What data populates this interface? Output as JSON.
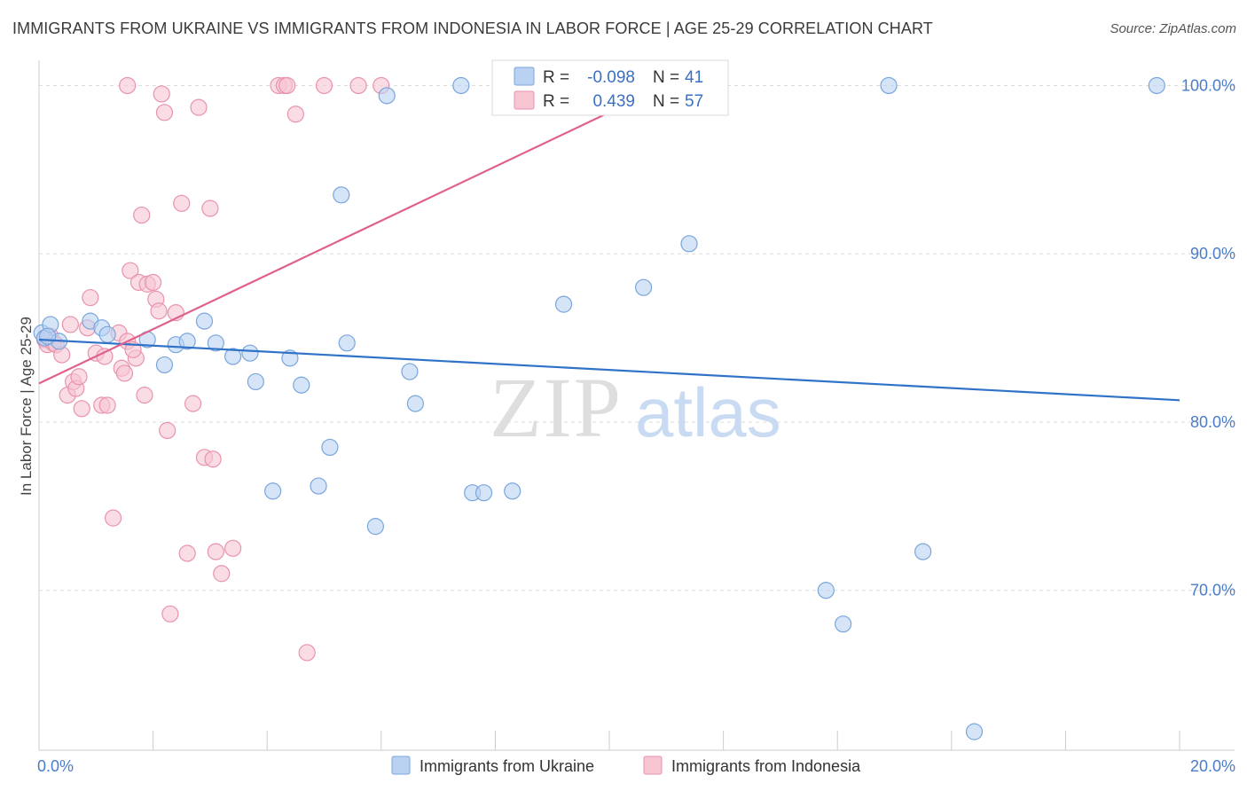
{
  "title": "IMMIGRANTS FROM UKRAINE VS IMMIGRANTS FROM INDONESIA IN LABOR FORCE | AGE 25-29 CORRELATION CHART",
  "source": "Source: ZipAtlas.com",
  "colors": {
    "ukraine_fill": "#b9d2f2",
    "ukraine_stroke": "#7aa6dc",
    "ukraine_line": "#2f72c8",
    "indonesia_fill": "#f7c4d2",
    "indonesia_stroke": "#e993ad",
    "indonesia_line": "#e0608d",
    "grid": "#dddddd",
    "tick": "#4a7cc9"
  },
  "watermark": {
    "zip": "ZIP",
    "atlas": "atlas"
  },
  "stats": {
    "r_label": "R =",
    "n_label": "N =",
    "ukraine": {
      "r": "-0.098",
      "n": "41"
    },
    "indonesia": {
      "r": "0.439",
      "n": "57"
    }
  },
  "chart_data": {
    "type": "scatter",
    "title": "IMMIGRANTS FROM UKRAINE VS IMMIGRANTS FROM INDONESIA IN LABOR FORCE | AGE 25-29 CORRELATION CHART",
    "xlabel": "",
    "ylabel": "In Labor Force | Age 25-29",
    "xlim": [
      0,
      20
    ],
    "ylim": [
      60.5,
      101.5
    ],
    "x_tick_labels": [
      {
        "value": 0,
        "label": "0.0%"
      },
      {
        "value": 20,
        "label": "20.0%"
      }
    ],
    "y_tick_labels": [
      {
        "value": 100,
        "label": "100.0%"
      },
      {
        "value": 90,
        "label": "90.0%"
      },
      {
        "value": 80,
        "label": "80.0%"
      },
      {
        "value": 70,
        "label": "70.0%"
      }
    ],
    "legend": [
      "Immigrants from Ukraine",
      "Immigrants from Indonesia"
    ],
    "series": [
      {
        "name": "Immigrants from Ukraine",
        "points": [
          [
            0.05,
            85.3
          ],
          [
            0.1,
            85.0
          ],
          [
            0.2,
            85.8
          ],
          [
            0.35,
            84.8
          ],
          [
            0.9,
            86.0
          ],
          [
            1.1,
            85.6
          ],
          [
            1.2,
            85.2
          ],
          [
            1.9,
            84.9
          ],
          [
            2.2,
            83.4
          ],
          [
            2.4,
            84.6
          ],
          [
            2.6,
            84.8
          ],
          [
            2.9,
            86.0
          ],
          [
            3.1,
            84.7
          ],
          [
            3.4,
            83.9
          ],
          [
            3.7,
            84.1
          ],
          [
            3.8,
            82.4
          ],
          [
            4.1,
            75.9
          ],
          [
            4.4,
            83.8
          ],
          [
            4.6,
            82.2
          ],
          [
            4.9,
            76.2
          ],
          [
            5.1,
            78.5
          ],
          [
            5.3,
            93.5
          ],
          [
            5.4,
            84.7
          ],
          [
            5.9,
            73.8
          ],
          [
            6.1,
            99.4
          ],
          [
            6.5,
            83.0
          ],
          [
            6.6,
            81.1
          ],
          [
            7.4,
            100.0
          ],
          [
            7.6,
            75.8
          ],
          [
            7.8,
            75.8
          ],
          [
            8.3,
            75.9
          ],
          [
            9.2,
            87.0
          ],
          [
            10.6,
            88.0
          ],
          [
            11.4,
            90.6
          ],
          [
            13.8,
            70.0
          ],
          [
            14.1,
            68.0
          ],
          [
            14.9,
            100.0
          ],
          [
            15.5,
            72.3
          ],
          [
            16.4,
            61.6
          ],
          [
            19.6,
            100.0
          ],
          [
            0.15,
            85.1
          ]
        ],
        "trend": [
          [
            0,
            84.9
          ],
          [
            20,
            81.3
          ]
        ]
      },
      {
        "name": "Immigrants from Indonesia",
        "points": [
          [
            0.1,
            84.9
          ],
          [
            0.15,
            84.6
          ],
          [
            0.2,
            85.1
          ],
          [
            0.25,
            84.7
          ],
          [
            0.3,
            84.6
          ],
          [
            0.4,
            84.0
          ],
          [
            0.5,
            81.6
          ],
          [
            0.6,
            82.4
          ],
          [
            0.65,
            82.0
          ],
          [
            0.7,
            82.7
          ],
          [
            0.75,
            80.8
          ],
          [
            0.85,
            85.6
          ],
          [
            0.9,
            87.4
          ],
          [
            1.0,
            84.1
          ],
          [
            1.1,
            81.0
          ],
          [
            1.15,
            83.9
          ],
          [
            1.2,
            81.0
          ],
          [
            1.3,
            74.3
          ],
          [
            1.4,
            85.3
          ],
          [
            1.45,
            83.2
          ],
          [
            1.5,
            82.9
          ],
          [
            1.55,
            84.8
          ],
          [
            1.6,
            89.0
          ],
          [
            1.7,
            83.8
          ],
          [
            1.75,
            88.3
          ],
          [
            1.8,
            92.3
          ],
          [
            1.85,
            81.6
          ],
          [
            1.9,
            88.2
          ],
          [
            2.0,
            88.3
          ],
          [
            2.05,
            87.3
          ],
          [
            2.1,
            86.6
          ],
          [
            2.15,
            99.5
          ],
          [
            2.2,
            98.4
          ],
          [
            2.25,
            79.5
          ],
          [
            2.3,
            68.6
          ],
          [
            2.4,
            86.5
          ],
          [
            2.5,
            93.0
          ],
          [
            2.6,
            72.2
          ],
          [
            2.7,
            81.1
          ],
          [
            2.8,
            98.7
          ],
          [
            2.9,
            77.9
          ],
          [
            3.0,
            92.7
          ],
          [
            3.05,
            77.8
          ],
          [
            3.1,
            72.3
          ],
          [
            3.2,
            71.0
          ],
          [
            3.4,
            72.5
          ],
          [
            4.2,
            100.0
          ],
          [
            4.3,
            100.0
          ],
          [
            4.35,
            100.0
          ],
          [
            4.5,
            98.3
          ],
          [
            4.7,
            66.3
          ],
          [
            5.0,
            100.0
          ],
          [
            5.6,
            100.0
          ],
          [
            6.0,
            100.0
          ],
          [
            1.55,
            100.0
          ],
          [
            0.55,
            85.8
          ],
          [
            1.65,
            84.3
          ]
        ],
        "trend": [
          [
            0,
            82.3
          ],
          [
            11.3,
            100.5
          ]
        ]
      }
    ]
  }
}
